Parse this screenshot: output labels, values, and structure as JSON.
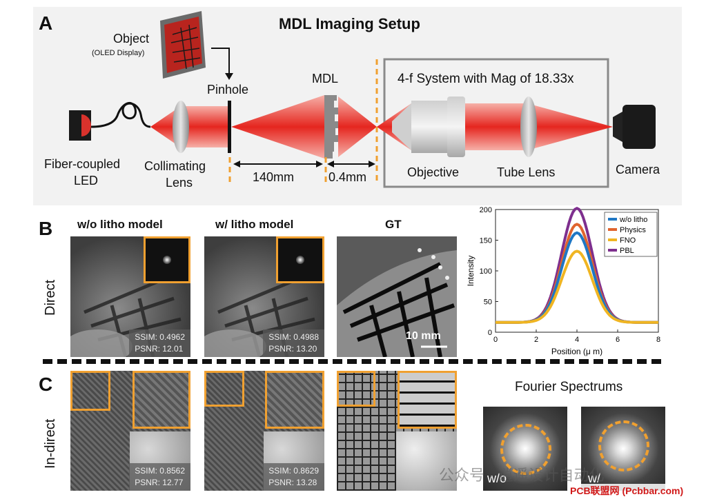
{
  "panel_a": {
    "label": "A",
    "title": "MDL Imaging Setup",
    "object_label": "Object",
    "object_sub": "(OLED Display)",
    "pinhole_label": "Pinhole",
    "mdl_label": "MDL",
    "fourf_label": "4-f System with Mag of 18.33x",
    "led_label_1": "Fiber-coupled",
    "led_label_2": "LED",
    "collimating_label_1": "Collimating",
    "collimating_label_2": "Lens",
    "dist_1": "140mm",
    "dist_2": "0.4mm",
    "objective_label": "Objective",
    "tube_lens_label": "Tube Lens",
    "camera_label": "Camera"
  },
  "panel_b": {
    "label": "B",
    "row_label": "Direct",
    "columns": [
      {
        "title": "w/o litho model",
        "ssim": "SSIM: 0.4962",
        "psnr": "PSNR: 12.01"
      },
      {
        "title": "w/ litho model",
        "ssim": "SSIM: 0.4988",
        "psnr": "PSNR: 13.20"
      },
      {
        "title": "GT",
        "scale": "10 mm"
      }
    ]
  },
  "panel_c": {
    "label": "C",
    "row_label": "In-direct",
    "columns": [
      {
        "ssim": "SSIM: 0.8562",
        "psnr": "PSNR: 12.77"
      },
      {
        "ssim": "SSIM: 0.8629",
        "psnr": "PSNR: 13.28"
      }
    ],
    "fourier_title": "Fourier Spectrums",
    "fourier_labels": [
      "w/o",
      "w/"
    ]
  },
  "watermark": {
    "text": "公众号 · 逍遥设计自动化",
    "site": "PCB联盟网 (Pcbbar.com)"
  },
  "colors": {
    "orange": "#f0a030",
    "beam": "#e8302a",
    "wo_litho": "#1f77c4",
    "physics": "#e0642e",
    "fno": "#f0b522",
    "pbl": "#7e2f8e"
  },
  "chart_data": {
    "type": "line",
    "xlabel": "Position (μ m)",
    "ylabel": "Intensity",
    "xlim": [
      0,
      8
    ],
    "ylim": [
      0,
      200
    ],
    "xticks": [
      "0",
      "2",
      "4",
      "6",
      "8"
    ],
    "yticks": [
      "0",
      "50",
      "100",
      "150",
      "200"
    ],
    "legend_position": "top-right",
    "series": [
      {
        "name": "w/o litho",
        "peak": 162,
        "color": "#1f77c4"
      },
      {
        "name": "Physics",
        "peak": 176,
        "color": "#e0642e"
      },
      {
        "name": "FNO",
        "peak": 132,
        "color": "#f0b522"
      },
      {
        "name": "PBL",
        "peak": 202,
        "color": "#7e2f8e"
      }
    ],
    "x": [
      0,
      0.5,
      1,
      1.5,
      2,
      2.5,
      3,
      3.5,
      4,
      4.5,
      5,
      5.5,
      6,
      6.5,
      7,
      7.5,
      8
    ],
    "baseline": 16,
    "center": 4.0,
    "sigma": 0.75
  }
}
